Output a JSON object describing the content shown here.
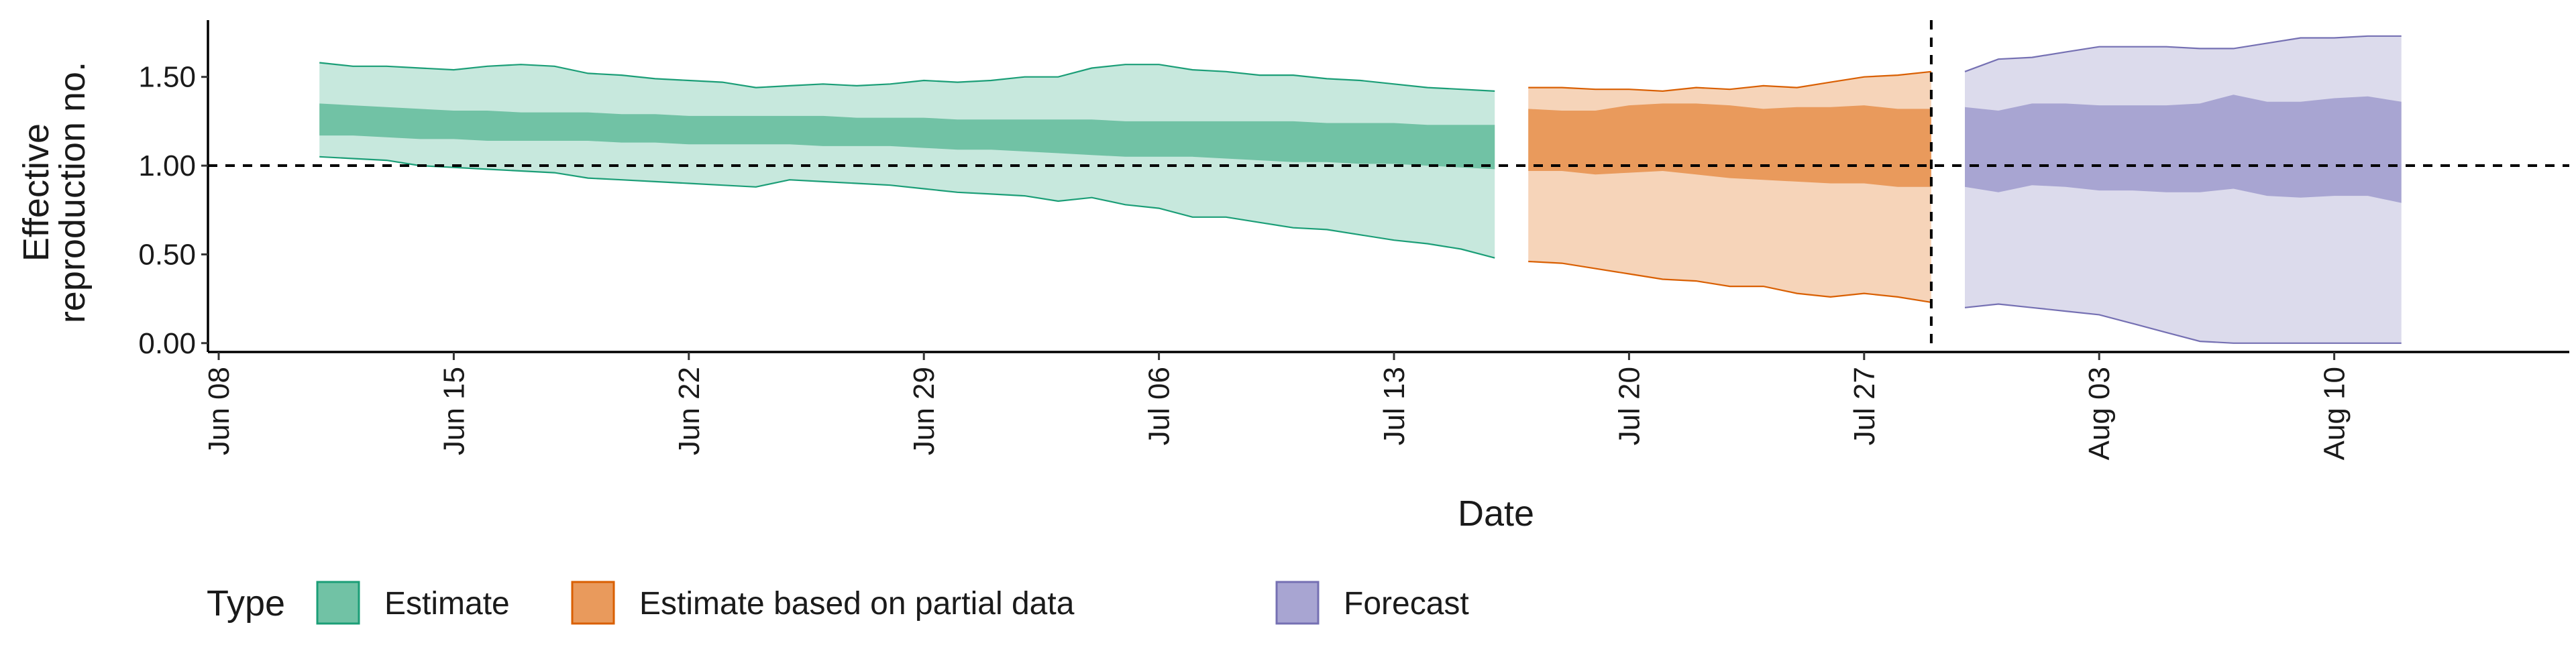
{
  "chart_data": {
    "type": "area",
    "title": "",
    "xlabel": "Date",
    "ylabel": [
      "Effective",
      "reproduction no."
    ],
    "ylim": [
      -0.05,
      1.82
    ],
    "xlim": [
      "2020-06-08",
      "2020-08-17"
    ],
    "x_ticks": [
      {
        "date": "2020-06-08",
        "label": "Jun 08"
      },
      {
        "date": "2020-06-15",
        "label": "Jun 15"
      },
      {
        "date": "2020-06-22",
        "label": "Jun 22"
      },
      {
        "date": "2020-06-29",
        "label": "Jun 29"
      },
      {
        "date": "2020-07-06",
        "label": "Jul 06"
      },
      {
        "date": "2020-07-13",
        "label": "Jul 13"
      },
      {
        "date": "2020-07-20",
        "label": "Jul 20"
      },
      {
        "date": "2020-07-27",
        "label": "Jul 27"
      },
      {
        "date": "2020-08-03",
        "label": "Aug 03"
      },
      {
        "date": "2020-08-10",
        "label": "Aug 10"
      }
    ],
    "y_ticks": [
      {
        "value": 0.0,
        "label": "0.00"
      },
      {
        "value": 0.5,
        "label": "0.50"
      },
      {
        "value": 1.0,
        "label": "1.00"
      },
      {
        "value": 1.5,
        "label": "1.50"
      }
    ],
    "reference_lines": {
      "horizontal_y": 1.0,
      "vertical_x": "2020-07-29"
    },
    "grid": false,
    "legend": {
      "title": "Type",
      "placement": "bottom",
      "entries": [
        {
          "label": "Estimate",
          "fill": "#71c2a5",
          "stroke": "#1b9e77"
        },
        {
          "label": "Estimate based on partial data",
          "fill": "#e99a5c",
          "stroke": "#d95f02"
        },
        {
          "label": "Forecast",
          "fill": "#a8a5d2",
          "stroke": "#7570b3"
        }
      ]
    },
    "series": [
      {
        "name": "Estimate",
        "outer_fill": "#c7e8dd",
        "inner_fill": "#71c2a5",
        "line_color": "#1b9e77",
        "dates": [
          "2020-06-11",
          "2020-06-12",
          "2020-06-13",
          "2020-06-14",
          "2020-06-15",
          "2020-06-16",
          "2020-06-17",
          "2020-06-18",
          "2020-06-19",
          "2020-06-20",
          "2020-06-21",
          "2020-06-22",
          "2020-06-23",
          "2020-06-24",
          "2020-06-25",
          "2020-06-26",
          "2020-06-27",
          "2020-06-28",
          "2020-06-29",
          "2020-06-30",
          "2020-07-01",
          "2020-07-02",
          "2020-07-03",
          "2020-07-04",
          "2020-07-05",
          "2020-07-06",
          "2020-07-07",
          "2020-07-08",
          "2020-07-09",
          "2020-07-10",
          "2020-07-11",
          "2020-07-12",
          "2020-07-13",
          "2020-07-14",
          "2020-07-15",
          "2020-07-16"
        ],
        "upper_90": [
          1.58,
          1.56,
          1.56,
          1.55,
          1.54,
          1.56,
          1.57,
          1.56,
          1.52,
          1.51,
          1.49,
          1.48,
          1.47,
          1.44,
          1.45,
          1.46,
          1.45,
          1.46,
          1.48,
          1.47,
          1.48,
          1.5,
          1.5,
          1.55,
          1.57,
          1.57,
          1.54,
          1.53,
          1.51,
          1.51,
          1.49,
          1.48,
          1.46,
          1.44,
          1.43,
          1.42
        ],
        "upper_50": [
          1.35,
          1.34,
          1.33,
          1.32,
          1.31,
          1.31,
          1.3,
          1.3,
          1.3,
          1.29,
          1.29,
          1.28,
          1.28,
          1.28,
          1.28,
          1.28,
          1.27,
          1.27,
          1.27,
          1.26,
          1.26,
          1.26,
          1.26,
          1.26,
          1.25,
          1.25,
          1.25,
          1.25,
          1.25,
          1.25,
          1.24,
          1.24,
          1.24,
          1.23,
          1.23,
          1.23
        ],
        "lower_50": [
          1.17,
          1.17,
          1.16,
          1.15,
          1.15,
          1.14,
          1.14,
          1.14,
          1.14,
          1.13,
          1.13,
          1.12,
          1.12,
          1.12,
          1.12,
          1.11,
          1.11,
          1.11,
          1.1,
          1.09,
          1.09,
          1.08,
          1.07,
          1.06,
          1.05,
          1.05,
          1.05,
          1.04,
          1.03,
          1.02,
          1.02,
          1.01,
          1.01,
          1.0,
          0.99,
          0.98
        ],
        "lower_90": [
          1.05,
          1.04,
          1.03,
          1.0,
          0.99,
          0.98,
          0.97,
          0.96,
          0.93,
          0.92,
          0.91,
          0.9,
          0.89,
          0.88,
          0.92,
          0.91,
          0.9,
          0.89,
          0.87,
          0.85,
          0.84,
          0.83,
          0.8,
          0.82,
          0.78,
          0.76,
          0.71,
          0.71,
          0.68,
          0.65,
          0.64,
          0.61,
          0.58,
          0.56,
          0.53,
          0.48
        ]
      },
      {
        "name": "Estimate based on partial data",
        "outer_fill": "#f6d4b9",
        "inner_fill": "#e99a5c",
        "line_color": "#d95f02",
        "dates": [
          "2020-07-17",
          "2020-07-18",
          "2020-07-19",
          "2020-07-20",
          "2020-07-21",
          "2020-07-22",
          "2020-07-23",
          "2020-07-24",
          "2020-07-25",
          "2020-07-26",
          "2020-07-27",
          "2020-07-28",
          "2020-07-29"
        ],
        "upper_90": [
          1.44,
          1.44,
          1.43,
          1.43,
          1.42,
          1.44,
          1.43,
          1.45,
          1.44,
          1.47,
          1.5,
          1.51,
          1.53
        ],
        "upper_50": [
          1.32,
          1.31,
          1.31,
          1.34,
          1.35,
          1.35,
          1.34,
          1.32,
          1.33,
          1.33,
          1.34,
          1.32,
          1.32
        ],
        "lower_50": [
          0.97,
          0.97,
          0.95,
          0.96,
          0.97,
          0.95,
          0.93,
          0.92,
          0.91,
          0.9,
          0.9,
          0.88,
          0.88
        ],
        "lower_90": [
          0.46,
          0.45,
          0.42,
          0.39,
          0.36,
          0.35,
          0.32,
          0.32,
          0.28,
          0.26,
          0.28,
          0.26,
          0.23
        ]
      },
      {
        "name": "Forecast",
        "outer_fill": "#dcdbec",
        "inner_fill": "#a8a5d2",
        "line_color": "#7570b3",
        "dates": [
          "2020-07-30",
          "2020-07-31",
          "2020-08-01",
          "2020-08-02",
          "2020-08-03",
          "2020-08-04",
          "2020-08-05",
          "2020-08-06",
          "2020-08-07",
          "2020-08-08",
          "2020-08-09",
          "2020-08-10",
          "2020-08-11",
          "2020-08-12"
        ],
        "upper_90": [
          1.53,
          1.6,
          1.61,
          1.64,
          1.67,
          1.67,
          1.67,
          1.66,
          1.66,
          1.69,
          1.72,
          1.72,
          1.73,
          1.73
        ],
        "upper_50": [
          1.33,
          1.31,
          1.35,
          1.35,
          1.34,
          1.34,
          1.34,
          1.35,
          1.4,
          1.36,
          1.36,
          1.38,
          1.39,
          1.36
        ],
        "lower_50": [
          0.88,
          0.85,
          0.89,
          0.88,
          0.86,
          0.86,
          0.85,
          0.85,
          0.87,
          0.83,
          0.82,
          0.83,
          0.83,
          0.79
        ],
        "lower_90": [
          0.2,
          0.22,
          0.2,
          0.18,
          0.16,
          0.11,
          0.06,
          0.01,
          0.0,
          0.0,
          0.0,
          0.0,
          0.0,
          0.0
        ]
      }
    ]
  }
}
